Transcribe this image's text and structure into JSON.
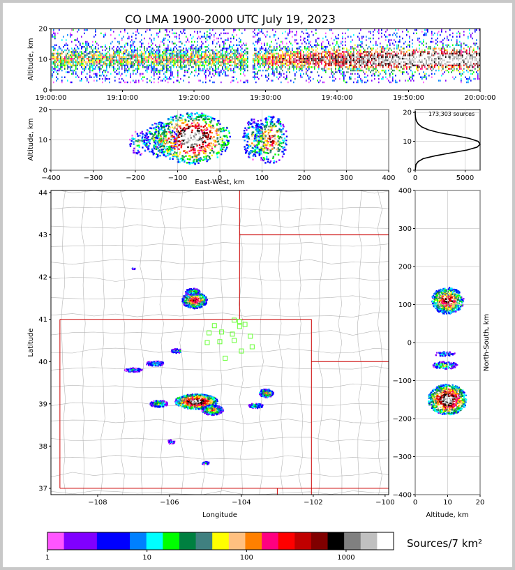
{
  "title": "CO LMA 1900-2000 UTC July 19, 2023",
  "colors": {
    "panel_border": "#000000",
    "grid": "#b0b0b0",
    "state_line": "#cc0000",
    "county_line": "#b4b4b4",
    "station": "#66ff33",
    "frame_bg": "#c8c8c8"
  },
  "chart_data": [
    {
      "id": "time-height",
      "type": "heatmap",
      "title": "",
      "xlabel": "",
      "ylabel": "Altitude, km",
      "xlim": [
        "19:00:00",
        "20:00:00"
      ],
      "ylim": [
        0,
        20
      ],
      "x_ticks": [
        "19:00:00",
        "19:10:00",
        "19:20:00",
        "19:30:00",
        "19:40:00",
        "19:50:00",
        "20:00:00"
      ],
      "y_ticks": [
        0,
        10,
        20
      ],
      "data_gap": [
        "19:27:30",
        "19:28:00"
      ]
    },
    {
      "id": "ew-altitude",
      "type": "heatmap",
      "xlabel": "East-West, km",
      "ylabel": "Altitude, km",
      "xlim": [
        -400,
        400
      ],
      "ylim": [
        0,
        20
      ],
      "x_ticks": [
        -400,
        -300,
        -200,
        -100,
        0,
        100,
        200,
        300,
        400
      ],
      "y_ticks": [
        0,
        10,
        20
      ],
      "clusters": [
        {
          "x": -190,
          "z": 9,
          "w": 25,
          "h": 6,
          "level": 0.45
        },
        {
          "x": -140,
          "z": 10,
          "w": 40,
          "h": 10,
          "level": 0.6
        },
        {
          "x": -65,
          "z": 10.5,
          "w": 90,
          "h": 15,
          "level": 1.0
        },
        {
          "x": 80,
          "z": 10,
          "w": 25,
          "h": 12,
          "level": 0.5
        },
        {
          "x": 120,
          "z": 10,
          "w": 40,
          "h": 14,
          "level": 0.7
        }
      ]
    },
    {
      "id": "altitude-histogram",
      "type": "line",
      "annotation": "173,303 sources",
      "xlim": [
        0,
        6500
      ],
      "ylim": [
        0,
        21
      ],
      "x_ticks": [
        0,
        5000
      ],
      "y_ticks": [
        0,
        10,
        20
      ],
      "x": [
        0,
        80,
        300,
        800,
        2000,
        3600,
        5200,
        6200,
        6500,
        6300,
        5400,
        4000,
        2400,
        1300,
        650,
        300,
        120,
        40,
        10,
        0
      ],
      "y": [
        0,
        2,
        3,
        4,
        5,
        6,
        7,
        8,
        9,
        10,
        11,
        12,
        13,
        14,
        15,
        16,
        17,
        18,
        19,
        20.5
      ]
    },
    {
      "id": "plan-view",
      "type": "heatmap",
      "xlabel": "Longitude",
      "ylabel": "Latitude",
      "xlim": [
        -109.3,
        -99.9
      ],
      "ylim": [
        36.85,
        44.05
      ],
      "x_ticks": [
        -108,
        -106,
        -104,
        -102,
        -100
      ],
      "y_ticks": [
        37,
        38,
        39,
        40,
        41,
        42,
        43,
        44
      ],
      "x_tick_labels": [
        "−108",
        "−106",
        "−104",
        "−102",
        "−100"
      ],
      "storms": [
        {
          "lon": -105.25,
          "lat": 39.05,
          "rx": 0.6,
          "ry": 0.18,
          "level": 1.0
        },
        {
          "lon": -104.8,
          "lat": 38.85,
          "rx": 0.3,
          "ry": 0.12,
          "level": 0.6
        },
        {
          "lon": -105.3,
          "lat": 41.45,
          "rx": 0.35,
          "ry": 0.2,
          "level": 0.75
        },
        {
          "lon": -105.35,
          "lat": 41.65,
          "rx": 0.2,
          "ry": 0.08,
          "level": 0.5
        },
        {
          "lon": -106.3,
          "lat": 39.0,
          "rx": 0.25,
          "ry": 0.08,
          "level": 0.5
        },
        {
          "lon": -103.3,
          "lat": 39.25,
          "rx": 0.2,
          "ry": 0.1,
          "level": 0.55
        },
        {
          "lon": -103.6,
          "lat": 38.95,
          "rx": 0.2,
          "ry": 0.06,
          "level": 0.4
        },
        {
          "lon": -106.4,
          "lat": 39.95,
          "rx": 0.25,
          "ry": 0.06,
          "level": 0.4
        },
        {
          "lon": -107.0,
          "lat": 39.8,
          "rx": 0.25,
          "ry": 0.05,
          "level": 0.35
        },
        {
          "lon": -105.8,
          "lat": 40.25,
          "rx": 0.15,
          "ry": 0.05,
          "level": 0.35
        },
        {
          "lon": -105.95,
          "lat": 38.1,
          "rx": 0.1,
          "ry": 0.05,
          "level": 0.25
        },
        {
          "lon": -105.0,
          "lat": 37.6,
          "rx": 0.1,
          "ry": 0.04,
          "level": 0.25
        },
        {
          "lon": -107.0,
          "lat": 42.2,
          "rx": 0.05,
          "ry": 0.02,
          "level": 0.2
        }
      ],
      "stations": [
        {
          "lon": -104.2,
          "lat": 40.98
        },
        {
          "lon": -104.05,
          "lat": 40.95
        },
        {
          "lon": -103.9,
          "lat": 40.88
        },
        {
          "lon": -104.05,
          "lat": 40.83
        },
        {
          "lon": -104.75,
          "lat": 40.85
        },
        {
          "lon": -104.9,
          "lat": 40.68
        },
        {
          "lon": -104.55,
          "lat": 40.7
        },
        {
          "lon": -104.25,
          "lat": 40.65
        },
        {
          "lon": -103.75,
          "lat": 40.6
        },
        {
          "lon": -104.95,
          "lat": 40.45
        },
        {
          "lon": -104.6,
          "lat": 40.47
        },
        {
          "lon": -104.2,
          "lat": 40.5
        },
        {
          "lon": -103.7,
          "lat": 40.35
        },
        {
          "lon": -104.0,
          "lat": 40.25
        },
        {
          "lon": -104.45,
          "lat": 40.08
        }
      ]
    },
    {
      "id": "ns-altitude",
      "type": "heatmap",
      "xlabel": "Altitude, km",
      "ylabel": "North-South, km",
      "xlim": [
        0,
        20
      ],
      "ylim": [
        -400,
        400
      ],
      "x_ticks": [
        0,
        10,
        20
      ],
      "y_ticks": [
        -400,
        -300,
        -200,
        -100,
        0,
        100,
        200,
        300,
        400
      ],
      "clusters": [
        {
          "z": 10,
          "y": 110,
          "w": 8,
          "h": 35,
          "level": 0.8
        },
        {
          "z": 9,
          "y": -30,
          "w": 5,
          "h": 6,
          "level": 0.35
        },
        {
          "z": 9,
          "y": -60,
          "w": 6,
          "h": 10,
          "level": 0.5
        },
        {
          "z": 10,
          "y": -150,
          "w": 10,
          "h": 40,
          "level": 1.0
        }
      ]
    }
  ],
  "colorbar": {
    "label": "Sources/7 km²",
    "tick_labels": [
      "1",
      "10",
      "100",
      "1000"
    ],
    "tick_values": [
      1,
      10,
      100,
      1000
    ],
    "range": [
      1,
      3000
    ],
    "colors": [
      "#ff55ff",
      "#8000ff",
      "#8000ff",
      "#0000ff",
      "#0000ff",
      "#0080ff",
      "#00ffff",
      "#00ff00",
      "#008040",
      "#408080",
      "#ffff00",
      "#ffc080",
      "#ff8000",
      "#ff0080",
      "#ff0000",
      "#c00000",
      "#800000",
      "#000000",
      "#808080",
      "#c0c0c0",
      "#ffffff"
    ]
  }
}
